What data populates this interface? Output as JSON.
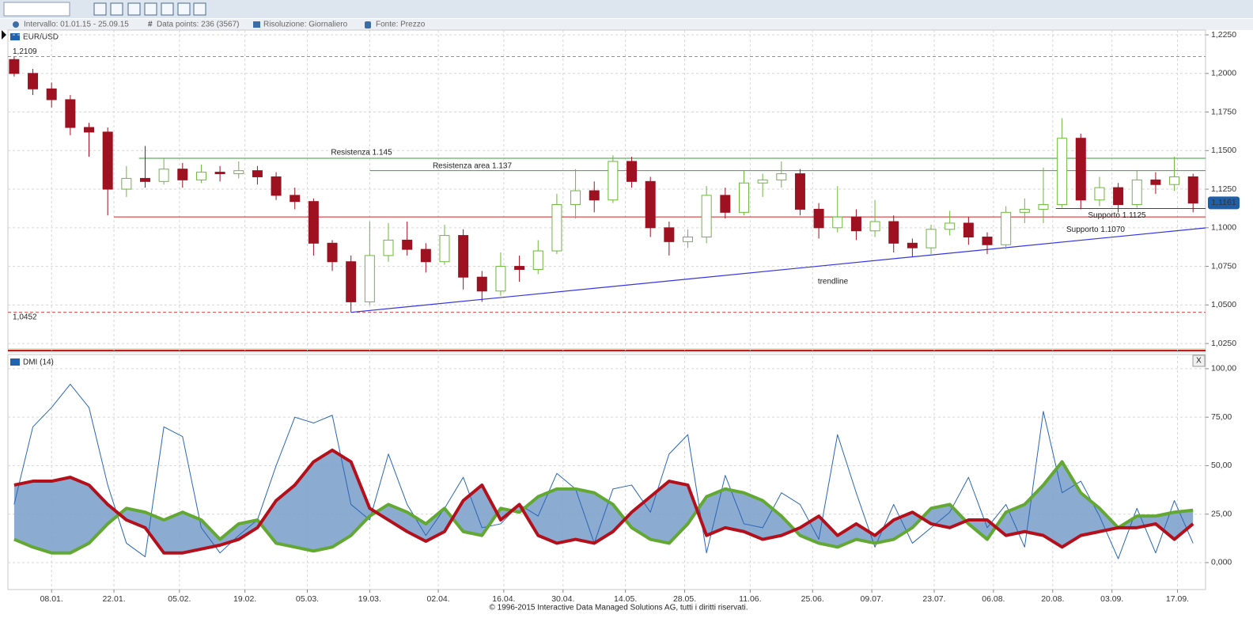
{
  "header": {
    "interval": "Intervallo: 01.01.15 - 25.09.15",
    "data_points": "Data points: 236 (3567)",
    "resolution": "Risoluzione: Giornaliero",
    "source": "Fonte: Prezzo"
  },
  "controls": {
    "close": "X"
  },
  "footer": "© 1996-2015 Interactive Data Managed Solutions AG, tutti i diritti riservati.",
  "chart_data": [
    {
      "type": "candlestick",
      "title": "EUR/USD",
      "x": [
        1,
        4,
        7,
        10,
        13,
        16,
        19,
        22,
        25,
        28,
        31,
        34,
        37,
        40,
        43,
        46,
        49,
        52,
        55,
        58,
        61,
        64,
        67,
        70,
        73,
        76,
        79,
        82,
        85,
        88,
        91,
        94,
        97,
        100,
        103,
        106,
        109,
        112,
        115,
        118,
        121,
        124,
        127,
        130,
        133,
        136,
        139,
        142,
        145,
        148,
        151,
        154,
        157,
        160,
        163,
        166,
        169,
        172,
        175,
        178,
        181,
        184,
        187,
        190
      ],
      "open": [
        1.209,
        1.2,
        1.19,
        1.183,
        1.165,
        1.162,
        1.125,
        1.132,
        1.13,
        1.138,
        1.131,
        1.136,
        1.135,
        1.137,
        1.133,
        1.121,
        1.117,
        1.09,
        1.078,
        1.052,
        1.082,
        1.092,
        1.086,
        1.078,
        1.095,
        1.068,
        1.059,
        1.075,
        1.073,
        1.085,
        1.115,
        1.124,
        1.118,
        1.143,
        1.13,
        1.1,
        1.091,
        1.094,
        1.121,
        1.11,
        1.129,
        1.131,
        1.135,
        1.112,
        1.1,
        1.107,
        1.098,
        1.104,
        1.09,
        1.087,
        1.099,
        1.103,
        1.094,
        1.089,
        1.11,
        1.112,
        1.115,
        1.158,
        1.118,
        1.126,
        1.115,
        1.131,
        1.128,
        1.133
      ],
      "high": [
        1.2109,
        1.203,
        1.194,
        1.186,
        1.168,
        1.165,
        1.14,
        1.153,
        1.145,
        1.142,
        1.141,
        1.14,
        1.143,
        1.14,
        1.136,
        1.126,
        1.119,
        1.092,
        1.082,
        1.104,
        1.103,
        1.104,
        1.09,
        1.102,
        1.099,
        1.072,
        1.084,
        1.082,
        1.092,
        1.122,
        1.138,
        1.13,
        1.147,
        1.146,
        1.133,
        1.104,
        1.099,
        1.127,
        1.126,
        1.137,
        1.135,
        1.143,
        1.138,
        1.116,
        1.127,
        1.112,
        1.118,
        1.108,
        1.093,
        1.102,
        1.111,
        1.107,
        1.097,
        1.114,
        1.119,
        1.139,
        1.171,
        1.161,
        1.133,
        1.129,
        1.137,
        1.136,
        1.146,
        1.135
      ],
      "low": [
        1.198,
        1.186,
        1.178,
        1.16,
        1.146,
        1.108,
        1.12,
        1.126,
        1.128,
        1.126,
        1.129,
        1.13,
        1.132,
        1.128,
        1.118,
        1.112,
        1.082,
        1.072,
        1.0452,
        1.05,
        1.078,
        1.082,
        1.071,
        1.076,
        1.06,
        1.052,
        1.056,
        1.065,
        1.07,
        1.083,
        1.106,
        1.11,
        1.116,
        1.126,
        1.094,
        1.082,
        1.087,
        1.09,
        1.106,
        1.108,
        1.12,
        1.126,
        1.108,
        1.093,
        1.097,
        1.092,
        1.094,
        1.084,
        1.081,
        1.083,
        1.095,
        1.089,
        1.083,
        1.086,
        1.103,
        1.103,
        1.113,
        1.112,
        1.114,
        1.11,
        1.113,
        1.122,
        1.124,
        1.11
      ],
      "close": [
        1.2,
        1.19,
        1.183,
        1.165,
        1.162,
        1.125,
        1.132,
        1.13,
        1.138,
        1.131,
        1.136,
        1.135,
        1.137,
        1.133,
        1.121,
        1.117,
        1.09,
        1.078,
        1.052,
        1.082,
        1.092,
        1.086,
        1.078,
        1.095,
        1.068,
        1.059,
        1.075,
        1.073,
        1.085,
        1.115,
        1.124,
        1.118,
        1.143,
        1.13,
        1.1,
        1.091,
        1.094,
        1.121,
        1.11,
        1.129,
        1.131,
        1.135,
        1.112,
        1.1,
        1.107,
        1.098,
        1.104,
        1.09,
        1.087,
        1.099,
        1.103,
        1.094,
        1.089,
        1.11,
        1.112,
        1.115,
        1.158,
        1.118,
        1.126,
        1.115,
        1.131,
        1.128,
        1.133,
        1.116
      ],
      "up_color": "#6cb83a",
      "down_color": "#9e1120",
      "xlim": [
        0,
        192
      ],
      "xticks": [
        {
          "value": 7,
          "label": "08.01."
        },
        {
          "value": 17,
          "label": "22.01."
        },
        {
          "value": 27.5,
          "label": "05.02."
        },
        {
          "value": 38,
          "label": "19.02."
        },
        {
          "value": 48,
          "label": "05.03."
        },
        {
          "value": 58,
          "label": "19.03."
        },
        {
          "value": 69,
          "label": "02.04."
        },
        {
          "value": 79.5,
          "label": "16.04."
        },
        {
          "value": 89,
          "label": "30.04."
        },
        {
          "value": 99,
          "label": "14.05."
        },
        {
          "value": 108.5,
          "label": "28.05."
        },
        {
          "value": 119,
          "label": "11.06."
        },
        {
          "value": 129,
          "label": "25.06."
        },
        {
          "value": 138.5,
          "label": "09.07."
        },
        {
          "value": 148.5,
          "label": "23.07."
        },
        {
          "value": 158,
          "label": "06.08."
        },
        {
          "value": 167.5,
          "label": "20.08."
        },
        {
          "value": 177,
          "label": "03.09."
        },
        {
          "value": 187.5,
          "label": "17.09."
        }
      ],
      "ylim": [
        1.0194,
        1.2281
      ],
      "yticks": [
        {
          "value": 1.025,
          "label": "1,0250"
        },
        {
          "value": 1.05,
          "label": "1,0500"
        },
        {
          "value": 1.075,
          "label": "1,0750"
        },
        {
          "value": 1.1,
          "label": "1,1000"
        },
        {
          "value": 1.125,
          "label": "1,1250"
        },
        {
          "value": 1.15,
          "label": "1,1500"
        },
        {
          "value": 1.175,
          "label": "1,1750"
        },
        {
          "value": 1.2,
          "label": "1,2000"
        },
        {
          "value": 1.225,
          "label": "1,2250"
        }
      ],
      "grid": true,
      "levels": [
        {
          "value": 1.2109,
          "label": "1,2109",
          "color": "#4cc24c",
          "style": "dashed",
          "x": [
            0,
            192
          ]
        },
        {
          "value": 1.0452,
          "label": "1,0452",
          "color": "#e04848",
          "style": "dashed",
          "x": [
            0,
            192
          ]
        },
        {
          "value": 1.145,
          "label": "Resistenza 1.145",
          "color": "#3a9e3a",
          "style": "solid",
          "x": [
            21,
            192
          ]
        },
        {
          "value": 1.137,
          "label": "Resistenza area 1.137",
          "color": "#3a9e3a",
          "style": "solid",
          "x": [
            58,
            192
          ]
        },
        {
          "value": 1.107,
          "label": "Supporto 1.1070",
          "color": "#d42020",
          "style": "solid",
          "x": [
            17,
            192
          ]
        },
        {
          "value": 1.1125,
          "label": "Supporto 1.1125",
          "color": "#b01818",
          "style": "solid",
          "x": [
            168,
            192
          ]
        }
      ],
      "trendline": {
        "label": "trendline",
        "x": [
          55,
          192
        ],
        "values": [
          1.0452,
          1.0999
        ],
        "color": "#3434e0"
      },
      "last": {
        "value": 1.1161,
        "label": "1,1161"
      }
    },
    {
      "type": "dmi",
      "title": "DMI (14)",
      "x": [
        1,
        4,
        7,
        10,
        13,
        16,
        19,
        22,
        25,
        28,
        31,
        34,
        37,
        40,
        43,
        46,
        49,
        52,
        55,
        58,
        61,
        64,
        67,
        70,
        73,
        76,
        79,
        82,
        85,
        88,
        91,
        94,
        97,
        100,
        103,
        106,
        109,
        112,
        115,
        118,
        121,
        124,
        127,
        130,
        133,
        136,
        139,
        142,
        145,
        148,
        151,
        154,
        157,
        160,
        163,
        166,
        169,
        172,
        175,
        178,
        181,
        184,
        187,
        190
      ],
      "xlim": [
        0,
        192
      ],
      "ylim": [
        -13.9,
        106.5
      ],
      "yticks": [
        {
          "value": 0,
          "label": "0,000"
        },
        {
          "value": 25,
          "label": "25,00"
        },
        {
          "value": 50,
          "label": "50,00"
        },
        {
          "value": 75,
          "label": "75,00"
        },
        {
          "value": 100,
          "label": "100,00"
        }
      ],
      "grid": true,
      "fill": "#7fa2cc",
      "series": [
        {
          "color": "#2a66b4",
          "values": [
            30,
            70,
            80,
            92,
            80,
            40,
            10,
            3,
            70,
            65,
            18,
            5,
            14,
            22,
            50,
            75,
            72,
            76,
            30,
            22,
            56,
            30,
            14,
            28,
            44,
            18,
            20,
            30,
            24,
            46,
            38,
            10,
            38,
            40,
            26,
            56,
            66,
            5,
            45,
            20,
            18,
            36,
            30,
            12,
            66,
            36,
            8,
            30,
            10,
            18,
            26,
            44,
            18,
            30,
            8,
            78,
            36,
            42,
            24,
            2,
            28,
            5,
            32,
            10
          ]
        },
        {
          "color": "#62a832",
          "values": [
            12,
            8,
            5,
            5,
            10,
            20,
            28,
            26,
            22,
            26,
            22,
            12,
            20,
            22,
            10,
            8,
            6,
            8,
            14,
            24,
            30,
            26,
            20,
            28,
            16,
            14,
            28,
            26,
            34,
            38,
            38,
            36,
            30,
            18,
            12,
            10,
            20,
            34,
            38,
            36,
            32,
            24,
            14,
            10,
            8,
            12,
            10,
            12,
            18,
            28,
            30,
            20,
            12,
            26,
            30,
            40,
            52,
            36,
            28,
            18,
            24,
            24,
            26,
            27
          ]
        },
        {
          "color": "#b3101c",
          "values": [
            40,
            42,
            42,
            44,
            40,
            30,
            22,
            18,
            5,
            5,
            7,
            9,
            12,
            18,
            32,
            40,
            52,
            58,
            52,
            28,
            22,
            16,
            11,
            16,
            32,
            40,
            22,
            30,
            14,
            10,
            12,
            10,
            16,
            26,
            34,
            42,
            40,
            14,
            18,
            16,
            12,
            14,
            18,
            24,
            14,
            20,
            14,
            22,
            26,
            20,
            18,
            22,
            22,
            14,
            16,
            14,
            8,
            14,
            16,
            18,
            18,
            20,
            12,
            20
          ]
        }
      ]
    }
  ]
}
